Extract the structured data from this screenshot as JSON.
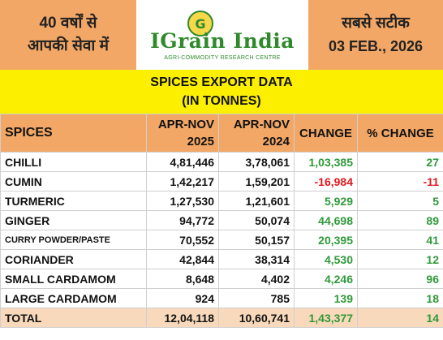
{
  "header": {
    "left_line1": "40 वर्षों से",
    "left_line2": "आपकी सेवा में",
    "logo_name": "IGrain India",
    "logo_tagline": "AGRI-COMMODITY RESEARCH CENTRE",
    "right_line1": "सबसे सटीक",
    "date": "03 FEB., 2026"
  },
  "title": {
    "line1": "SPICES EXPORT DATA",
    "line2": "(IN TONNES)"
  },
  "table": {
    "headers": {
      "spices": "SPICES",
      "col1_line1": "APR-NOV",
      "col1_line2": "2025",
      "col2_line1": "APR-NOV",
      "col2_line2": "2024",
      "change": "CHANGE",
      "pct_change": "% CHANGE"
    },
    "rows": [
      {
        "name": "CHILLI",
        "y2025": "4,81,446",
        "y2024": "3,78,061",
        "change": "1,03,385",
        "pct": "27"
      },
      {
        "name": "CUMIN",
        "y2025": "1,42,217",
        "y2024": "1,59,201",
        "change": "-16,984",
        "pct": "-11"
      },
      {
        "name": "TURMERIC",
        "y2025": "1,27,530",
        "y2024": "1,21,601",
        "change": "5,929",
        "pct": "5"
      },
      {
        "name": "GINGER",
        "y2025": "94,772",
        "y2024": "50,074",
        "change": "44,698",
        "pct": "89"
      },
      {
        "name": "CURRY POWDER/PASTE",
        "y2025": "70,552",
        "y2024": "50,157",
        "change": "20,395",
        "pct": "41"
      },
      {
        "name": "CORIANDER",
        "y2025": "42,844",
        "y2024": "38,314",
        "change": "4,530",
        "pct": "12"
      },
      {
        "name": "SMALL CARDAMOM",
        "y2025": "8,648",
        "y2024": "4,402",
        "change": "4,246",
        "pct": "96"
      },
      {
        "name": "LARGE CARDAMOM",
        "y2025": "924",
        "y2024": "785",
        "change": "139",
        "pct": "18"
      }
    ],
    "total": {
      "name": "TOTAL",
      "y2025": "12,04,118",
      "y2024": "10,60,741",
      "change": "1,43,377",
      "pct": "14"
    }
  },
  "colors": {
    "header_orange": "#f2a766",
    "title_yellow": "#fcf000",
    "positive_green": "#2f9a3a",
    "negative_red": "#e0191d",
    "total_row": "#f8d9bb",
    "brand_green": "#2f8a2c"
  }
}
